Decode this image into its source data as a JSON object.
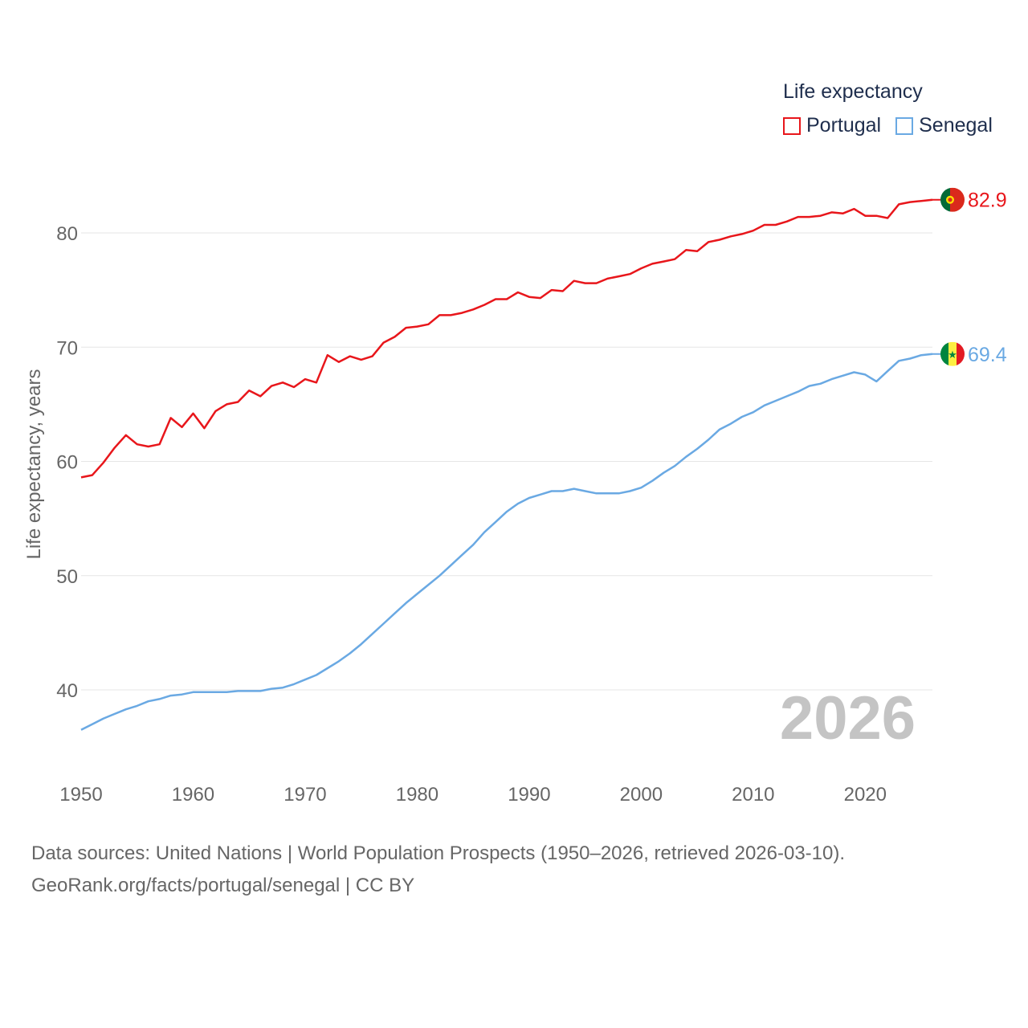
{
  "legend": {
    "title": "Life expectancy",
    "items": [
      {
        "label": "Portugal",
        "color": "#e8161b"
      },
      {
        "label": "Senegal",
        "color": "#6aa9e3"
      }
    ]
  },
  "year_watermark": "2026",
  "footer": {
    "line1": "Data sources: United Nations | World Population Prospects (1950–2026, retrieved 2026-03-10).",
    "line2": "GeoRank.org/facts/portugal/senegal | CC BY"
  },
  "chart_data": {
    "type": "line",
    "title": "Life expectancy",
    "xlabel": "",
    "ylabel": "Life expectancy, years",
    "xlim": [
      1950,
      2026
    ],
    "ylim": [
      35,
      85
    ],
    "xticks": [
      1950,
      1960,
      1970,
      1980,
      1990,
      2000,
      2010,
      2020
    ],
    "yticks": [
      40,
      50,
      60,
      70,
      80
    ],
    "grid": true,
    "legend_position": "top-right",
    "x": [
      1950,
      1951,
      1952,
      1953,
      1954,
      1955,
      1956,
      1957,
      1958,
      1959,
      1960,
      1961,
      1962,
      1963,
      1964,
      1965,
      1966,
      1967,
      1968,
      1969,
      1970,
      1971,
      1972,
      1973,
      1974,
      1975,
      1976,
      1977,
      1978,
      1979,
      1980,
      1981,
      1982,
      1983,
      1984,
      1985,
      1986,
      1987,
      1988,
      1989,
      1990,
      1991,
      1992,
      1993,
      1994,
      1995,
      1996,
      1997,
      1998,
      1999,
      2000,
      2001,
      2002,
      2003,
      2004,
      2005,
      2006,
      2007,
      2008,
      2009,
      2010,
      2011,
      2012,
      2013,
      2014,
      2015,
      2016,
      2017,
      2018,
      2019,
      2020,
      2021,
      2022,
      2023,
      2024,
      2025,
      2026
    ],
    "series": [
      {
        "name": "Portugal",
        "color": "#e8161b",
        "end_label": "82.9",
        "values": [
          58.6,
          58.8,
          59.9,
          61.2,
          62.3,
          61.5,
          61.3,
          61.5,
          63.8,
          63.0,
          64.2,
          62.9,
          64.4,
          65.0,
          65.2,
          66.2,
          65.7,
          66.6,
          66.9,
          66.5,
          67.2,
          66.9,
          69.3,
          68.7,
          69.2,
          68.9,
          69.2,
          70.4,
          70.9,
          71.7,
          71.8,
          72.0,
          72.8,
          72.8,
          73.0,
          73.3,
          73.7,
          74.2,
          74.2,
          74.8,
          74.4,
          74.3,
          75.0,
          74.9,
          75.8,
          75.6,
          75.6,
          76.0,
          76.2,
          76.4,
          76.9,
          77.3,
          77.5,
          77.7,
          78.5,
          78.4,
          79.2,
          79.4,
          79.7,
          79.9,
          80.2,
          80.7,
          80.7,
          81.0,
          81.4,
          81.4,
          81.5,
          81.8,
          81.7,
          82.1,
          81.5,
          81.5,
          81.3,
          82.5,
          82.7,
          82.8,
          82.9
        ]
      },
      {
        "name": "Senegal",
        "color": "#6aa9e3",
        "end_label": "69.4",
        "values": [
          36.5,
          37.0,
          37.5,
          37.9,
          38.3,
          38.6,
          39.0,
          39.2,
          39.5,
          39.6,
          39.8,
          39.8,
          39.8,
          39.8,
          39.9,
          39.9,
          39.9,
          40.1,
          40.2,
          40.5,
          40.9,
          41.3,
          41.9,
          42.5,
          43.2,
          44.0,
          44.9,
          45.8,
          46.7,
          47.6,
          48.4,
          49.2,
          50.0,
          50.9,
          51.8,
          52.7,
          53.8,
          54.7,
          55.6,
          56.3,
          56.8,
          57.1,
          57.4,
          57.4,
          57.6,
          57.4,
          57.2,
          57.2,
          57.2,
          57.4,
          57.7,
          58.3,
          59.0,
          59.6,
          60.4,
          61.1,
          61.9,
          62.8,
          63.3,
          63.9,
          64.3,
          64.9,
          65.3,
          65.7,
          66.1,
          66.6,
          66.8,
          67.2,
          67.5,
          67.8,
          67.6,
          67.0,
          67.9,
          68.8,
          69.0,
          69.3,
          69.4
        ]
      }
    ]
  }
}
